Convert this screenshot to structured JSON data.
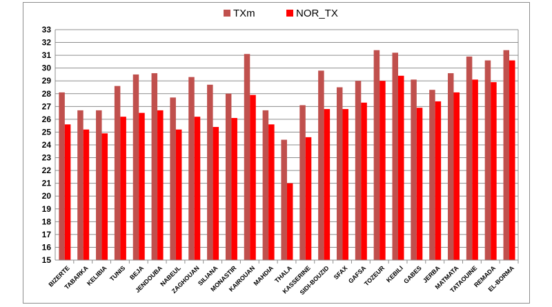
{
  "chart_data": {
    "type": "bar",
    "title": "",
    "xlabel": "",
    "ylabel": "",
    "ylim": [
      15,
      33
    ],
    "yticks": [
      15,
      16,
      17,
      18,
      19,
      20,
      21,
      22,
      23,
      24,
      25,
      26,
      27,
      28,
      29,
      30,
      31,
      32,
      33
    ],
    "grid": true,
    "legend_position": "top-center",
    "categories": [
      "BIZERTE",
      "TABARKA",
      "KELIBIA",
      "TUNIS",
      "BEJA",
      "JENDOUBA",
      "NABEUL",
      "ZAGHOUAN",
      "SILIANA",
      "MONASTIR",
      "KAIROUAN",
      "MAHDIA",
      "THALA",
      "KASSERINE",
      "SIDI-BOUZID",
      "SFAX",
      "GAFSA",
      "TOZEUR",
      "KEBILI",
      "GABES",
      "JERBA",
      "MATMATA",
      "TATAOUINE",
      "REMADA",
      "EL-BORMA"
    ],
    "series": [
      {
        "name": "TXm",
        "color": "#c0504d",
        "values": [
          28.1,
          26.7,
          26.7,
          28.6,
          29.5,
          29.6,
          27.7,
          29.3,
          28.7,
          28.0,
          31.1,
          26.7,
          24.4,
          27.1,
          29.8,
          28.5,
          29.0,
          31.4,
          31.2,
          29.1,
          28.3,
          29.6,
          30.9,
          30.6,
          31.4
        ]
      },
      {
        "name": "NOR_TX",
        "color": "#ff0000",
        "values": [
          25.6,
          25.2,
          24.9,
          26.2,
          26.5,
          26.7,
          25.2,
          26.2,
          25.4,
          26.1,
          27.9,
          25.6,
          21.0,
          24.6,
          26.8,
          26.8,
          27.3,
          29.0,
          29.4,
          26.9,
          27.4,
          28.1,
          29.1,
          28.9,
          30.6
        ]
      }
    ]
  }
}
